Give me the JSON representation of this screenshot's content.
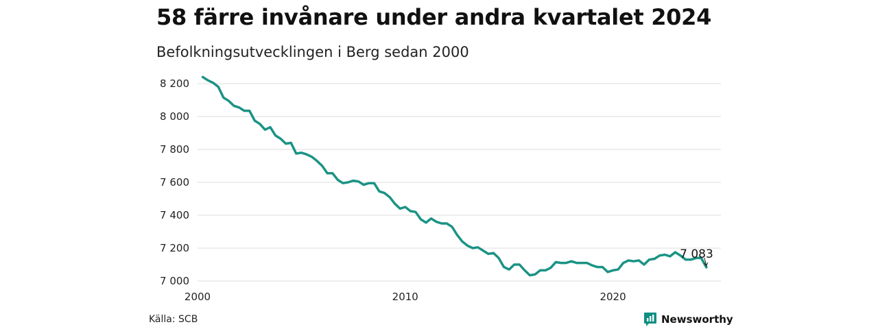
{
  "title": "58 färre invånare under andra kvartalet 2024",
  "subtitle": "Befolkningsutvecklingen i Berg sedan 2000",
  "source": "Källa: SCB",
  "brand": {
    "name": "Newsworthy",
    "icon": "newsworthy-logo-icon",
    "color": "#0f8f82"
  },
  "chart_data": {
    "type": "line",
    "title": "58 färre invånare under andra kvartalet 2024",
    "subtitle": "Befolkningsutvecklingen i Berg sedan 2000",
    "xlabel": "",
    "ylabel": "",
    "xlim": [
      2000,
      2025.2
    ],
    "ylim": [
      7000,
      8250
    ],
    "yticks": [
      7000,
      7200,
      7400,
      7600,
      7800,
      8000,
      8200
    ],
    "ytick_labels": [
      "7 000",
      "7 200",
      "7 400",
      "7 600",
      "7 800",
      "8 000",
      "8 200"
    ],
    "xticks": [
      2000,
      2010,
      2020
    ],
    "xtick_labels": [
      "2000",
      "2010",
      "2020"
    ],
    "grid": "horizontal",
    "line_color": "#1a9384",
    "annotation": {
      "text": "7 083",
      "x": 2024.5,
      "y": 7083
    },
    "series": [
      {
        "x": [
          2000.25,
          2000.5,
          2000.75,
          2001.0,
          2001.25,
          2001.5,
          2001.75,
          2002.0,
          2002.25,
          2002.5,
          2002.75,
          2003.0,
          2003.25,
          2003.5,
          2003.75,
          2004.0,
          2004.25,
          2004.5,
          2004.75,
          2005.0,
          2005.25,
          2005.5,
          2005.75,
          2006.0,
          2006.25,
          2006.5,
          2006.75,
          2007.0,
          2007.25,
          2007.5,
          2007.75,
          2008.0,
          2008.25,
          2008.5,
          2008.75,
          2009.0,
          2009.25,
          2009.5,
          2009.75,
          2010.0,
          2010.25,
          2010.5,
          2010.75,
          2011.0,
          2011.25,
          2011.5,
          2011.75,
          2012.0,
          2012.25,
          2012.5,
          2012.75,
          2013.0,
          2013.25,
          2013.5,
          2013.75,
          2014.0,
          2014.25,
          2014.5,
          2014.75,
          2015.0,
          2015.25,
          2015.5,
          2015.75,
          2016.0,
          2016.25,
          2016.5,
          2016.75,
          2017.0,
          2017.25,
          2017.5,
          2017.75,
          2018.0,
          2018.25,
          2018.5,
          2018.75,
          2019.0,
          2019.25,
          2019.5,
          2019.75,
          2020.0,
          2020.25,
          2020.5,
          2020.75,
          2021.0,
          2021.25,
          2021.5,
          2021.75,
          2022.0,
          2022.25,
          2022.5,
          2022.75,
          2023.0,
          2023.25,
          2023.5,
          2023.75,
          2024.0,
          2024.25,
          2024.5
        ],
        "values": [
          8240,
          8220,
          8205,
          8180,
          8115,
          8095,
          8065,
          8055,
          8035,
          8035,
          7975,
          7955,
          7920,
          7935,
          7885,
          7865,
          7835,
          7840,
          7775,
          7780,
          7770,
          7755,
          7730,
          7700,
          7655,
          7655,
          7615,
          7595,
          7600,
          7610,
          7605,
          7585,
          7595,
          7595,
          7545,
          7535,
          7510,
          7470,
          7440,
          7450,
          7425,
          7420,
          7375,
          7355,
          7380,
          7360,
          7350,
          7350,
          7330,
          7280,
          7240,
          7215,
          7200,
          7205,
          7185,
          7165,
          7170,
          7140,
          7085,
          7070,
          7100,
          7100,
          7065,
          7035,
          7040,
          7065,
          7065,
          7080,
          7115,
          7110,
          7110,
          7120,
          7110,
          7110,
          7110,
          7095,
          7085,
          7085,
          7055,
          7065,
          7070,
          7110,
          7125,
          7120,
          7125,
          7100,
          7130,
          7135,
          7155,
          7160,
          7150,
          7175,
          7155,
          7130,
          7130,
          7140,
          7141,
          7083
        ]
      }
    ]
  }
}
